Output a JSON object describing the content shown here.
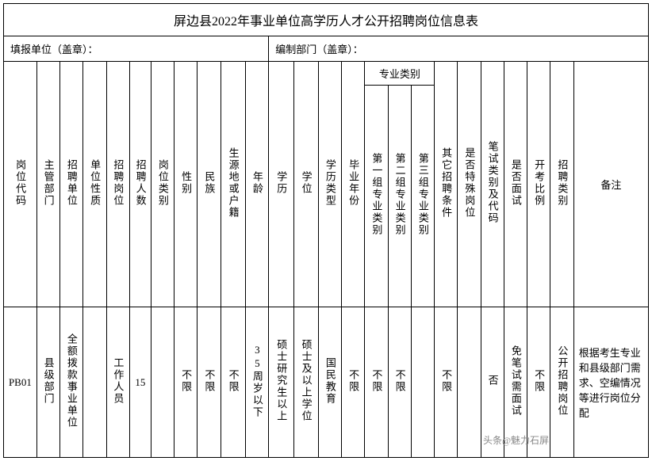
{
  "title": "屏边县2022年事业单位高学历人才公开招聘岗位信息表",
  "subtitle_left": "填报单位（盖章）：",
  "subtitle_right": "编制部门（盖章）：",
  "headers": {
    "post_code": "岗位代码",
    "supervisor": "主管部门",
    "recruit_unit": "招聘单位",
    "unit_nature": "单位性质",
    "recruit_post": "招聘岗位",
    "recruit_num": "招聘人数",
    "post_type": "岗位类别",
    "gender": "性别",
    "ethnicity": "民族",
    "origin": "生源地或户籍",
    "age": "年龄",
    "education": "学历",
    "degree": "学位",
    "edu_type": "学历类型",
    "grad_year": "毕业年份",
    "major_group": "专业类别",
    "major1": "第一组专业类别",
    "major2": "第二组专业类别",
    "major3": "第三组专业类别",
    "other_cond": "其它招聘条件",
    "special": "是否特殊岗位",
    "exam_code": "笔试类别及代码",
    "interview": "是否面试",
    "ratio": "开考比例",
    "recruit_type": "招聘类别",
    "remark": "备注"
  },
  "row": {
    "post_code": "PB01",
    "supervisor": "县级部门",
    "recruit_unit": "全额拨款事业单位",
    "recruit_post": "工作人员",
    "recruit_num": "15",
    "post_type": "",
    "gender": "不限",
    "ethnicity": "不限",
    "origin": "不限",
    "age": "35周岁以下",
    "education": "硕士研究生以上",
    "degree": "硕士及以上学位",
    "edu_type": "国民教育",
    "grad_year": "不限",
    "major1": "不限",
    "major2": "不限",
    "major3": "",
    "other_cond": "不限",
    "special": "",
    "exam_code": "否",
    "interview": "免笔试需面试",
    "ratio": "不限",
    "recruit_type": "公开招聘岗位",
    "remark": "根据考生专业和县级部门需求、空编情况等进行岗位分配"
  },
  "watermark": "头条@魅力石屏"
}
